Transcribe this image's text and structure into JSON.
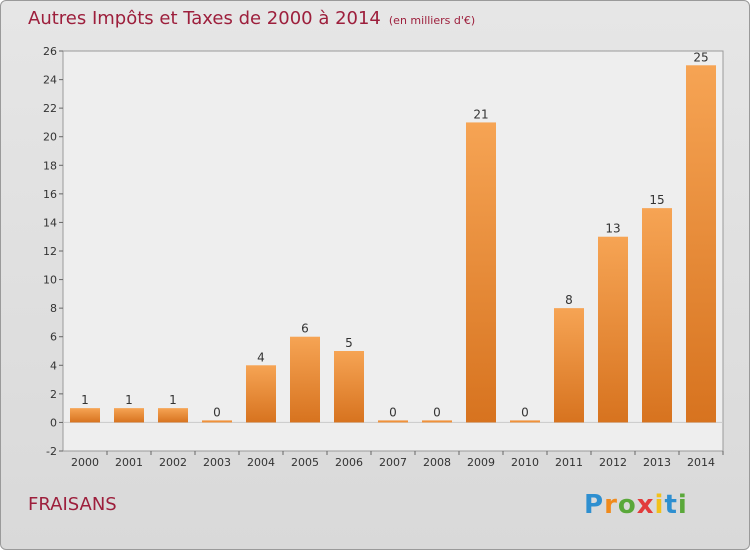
{
  "chart_data": {
    "type": "bar",
    "title": "Autres Impôts et Taxes de 2000 à 2014",
    "unit_note": "(en milliers d'€)",
    "categories": [
      "2000",
      "2001",
      "2002",
      "2003",
      "2004",
      "2005",
      "2006",
      "2007",
      "2008",
      "2009",
      "2010",
      "2011",
      "2012",
      "2013",
      "2014"
    ],
    "values": [
      1,
      1,
      1,
      0,
      4,
      6,
      5,
      0,
      0,
      21,
      0,
      8,
      13,
      15,
      25
    ],
    "ylim": [
      -2,
      26
    ],
    "yticks": [
      -2,
      0,
      2,
      4,
      6,
      8,
      10,
      12,
      14,
      16,
      18,
      20,
      22,
      24,
      26
    ],
    "grid": false,
    "bar_color": "#f0913a"
  },
  "footer": {
    "commune": "FRAISANS",
    "logo_letters": [
      {
        "ch": "P",
        "color": "#2e8fd0"
      },
      {
        "ch": "r",
        "color": "#f08a1c"
      },
      {
        "ch": "o",
        "color": "#5aa83a"
      },
      {
        "ch": "x",
        "color": "#e23b3b"
      },
      {
        "ch": "i",
        "color": "#f2c11a"
      },
      {
        "ch": "t",
        "color": "#2e8fd0"
      },
      {
        "ch": "i",
        "color": "#5aa83a"
      }
    ]
  }
}
